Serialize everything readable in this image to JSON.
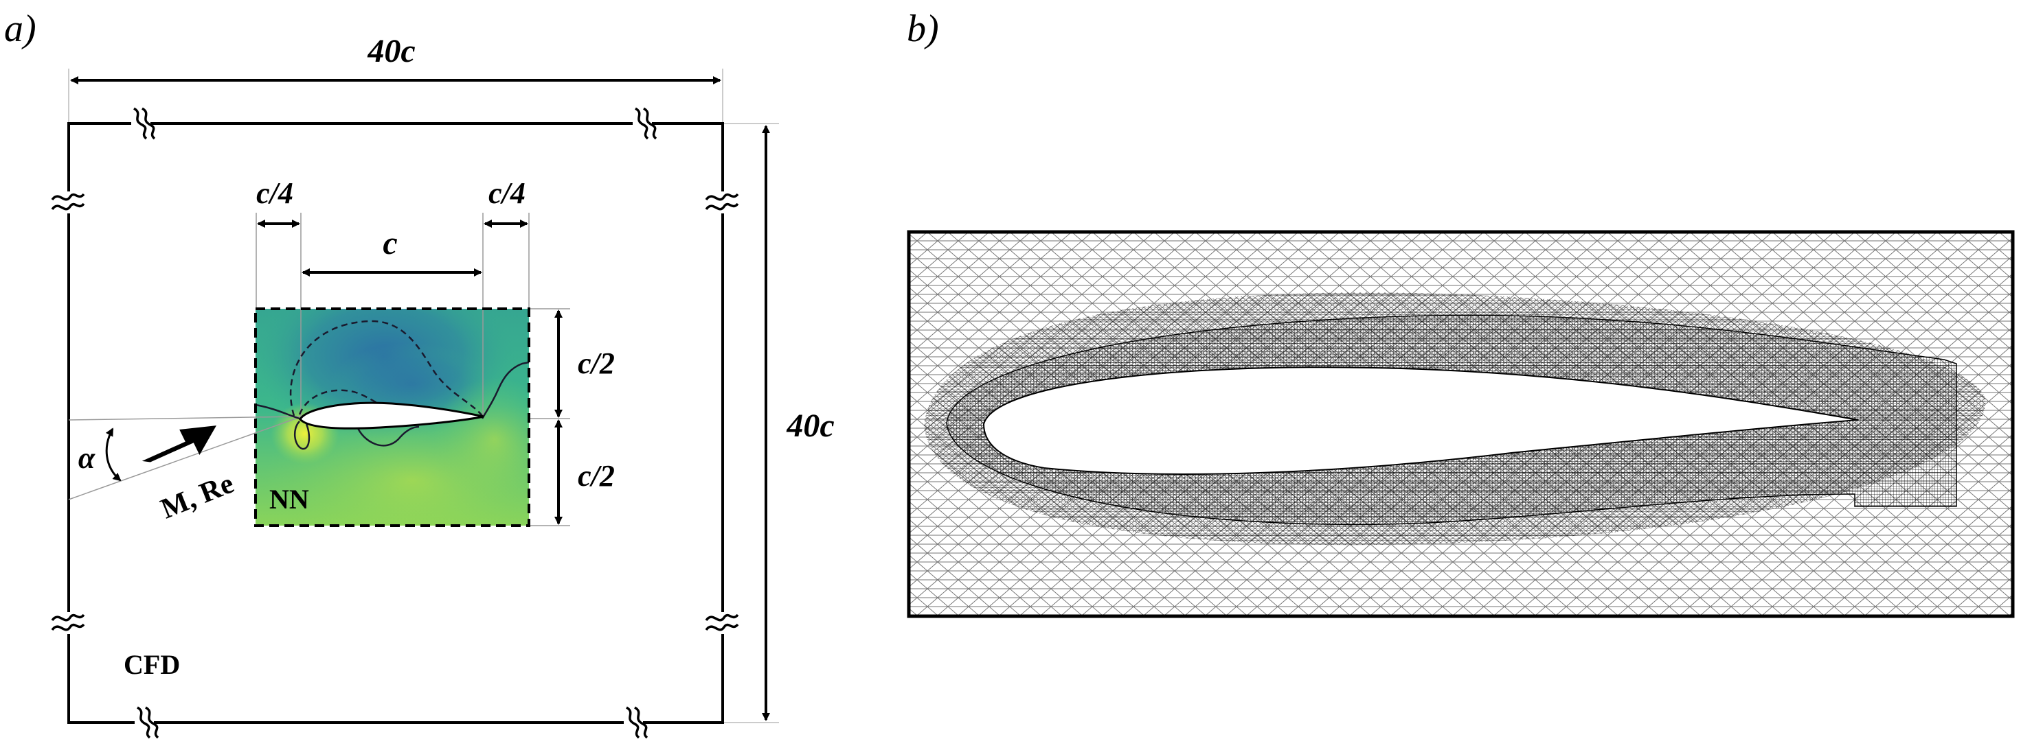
{
  "panel_a": {
    "tag": "a)",
    "domain_width": "40c",
    "domain_height": "40c",
    "quarter_left": "c/4",
    "quarter_right": "c/4",
    "chord": "c",
    "half_upper": "c/2",
    "half_lower": "c/2",
    "alpha": "α",
    "inflow": "M, Re",
    "nn_region": "NN",
    "cfd_region": "CFD"
  },
  "panel_b": {
    "tag": "b)"
  },
  "colors": {
    "field_low": "#2b6fa6",
    "field_mid": "#33b98a",
    "field_high": "#d9e93a",
    "line": "#000000"
  }
}
